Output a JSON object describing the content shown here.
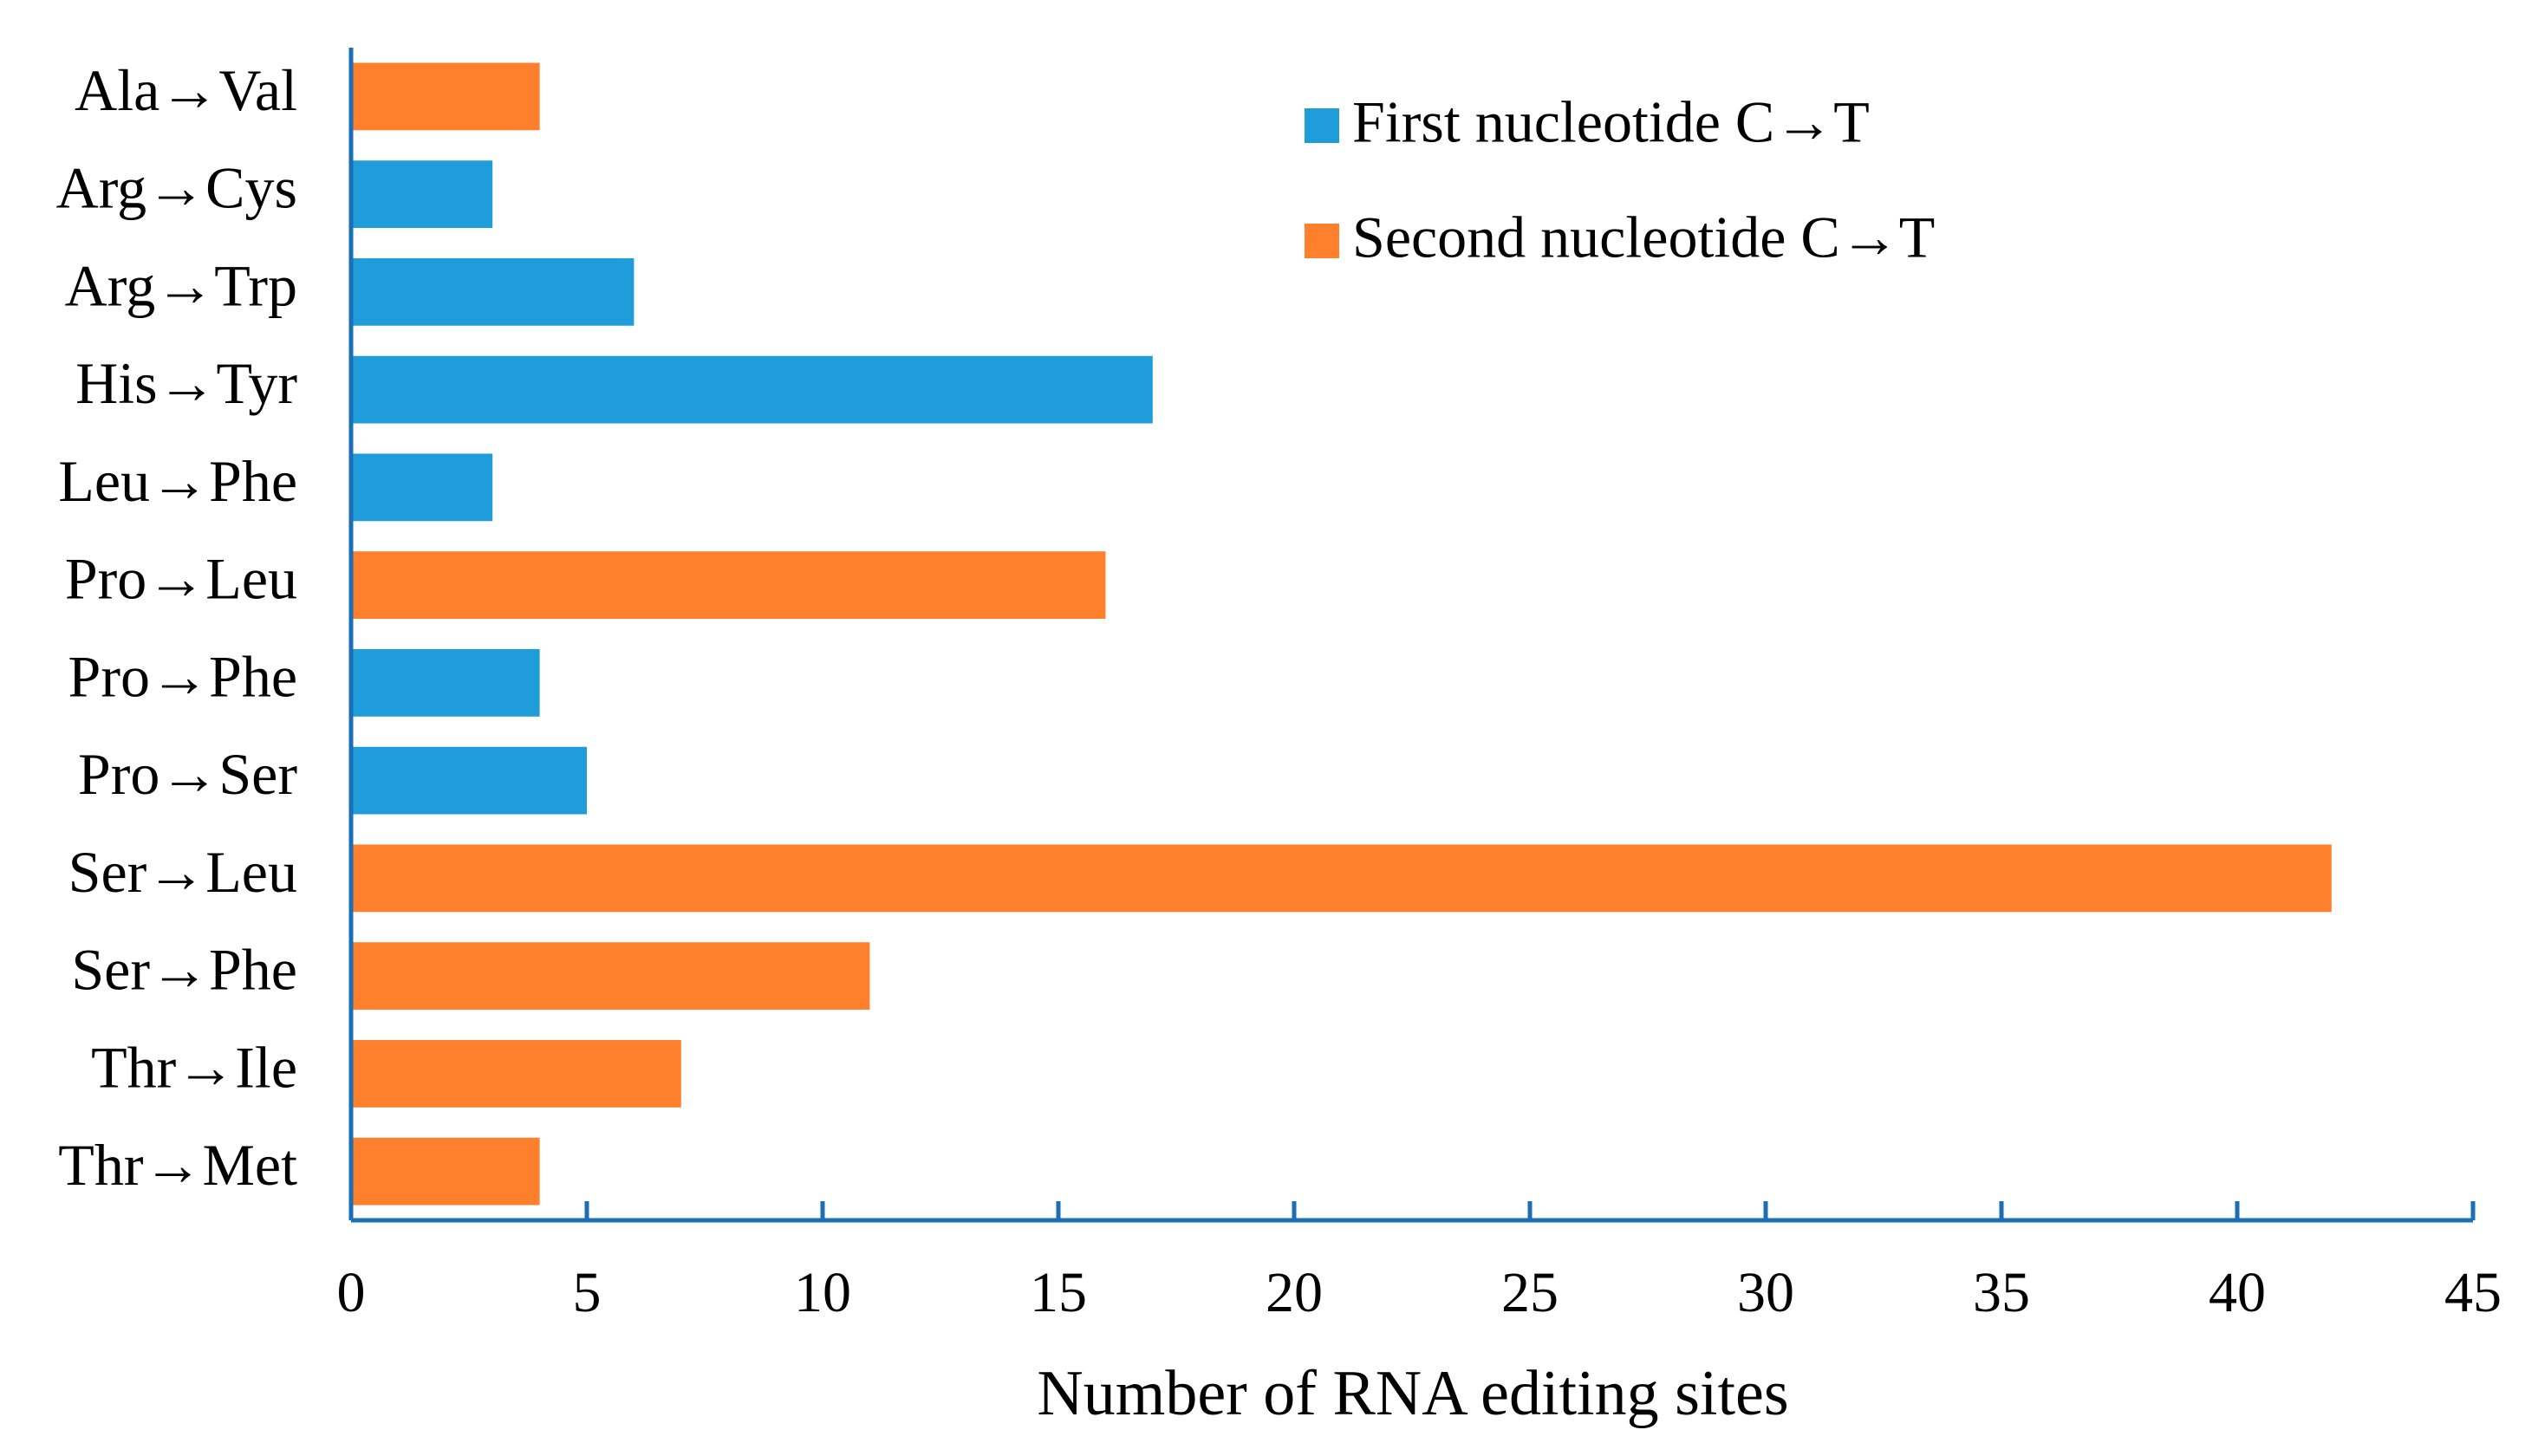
{
  "chart_data": {
    "type": "barh",
    "xlabel": "Number of RNA editing sites",
    "categories": [
      "Ala→Val",
      "Arg→Cys",
      "Arg→Trp",
      "His→Tyr",
      "Leu→Phe",
      "Pro→Leu",
      "Pro→Phe",
      "Pro→Ser",
      "Ser→Leu",
      "Ser→Phe",
      "Thr→Ile",
      "Thr→Met"
    ],
    "series": [
      {
        "name": "First nucleotide C→T",
        "color": "#1f9ddb",
        "values": [
          null,
          3,
          6,
          17,
          3,
          null,
          4,
          5,
          null,
          null,
          null,
          null
        ]
      },
      {
        "name": "Second nucleotide C→T",
        "color": "#fe7f2c",
        "values": [
          4,
          null,
          null,
          null,
          null,
          16,
          null,
          null,
          42,
          11,
          7,
          4
        ]
      }
    ],
    "xlim": [
      0,
      45
    ],
    "xticks": [
      0,
      5,
      10,
      15,
      20,
      25,
      30,
      35,
      40,
      45
    ],
    "legend": "top-right"
  }
}
